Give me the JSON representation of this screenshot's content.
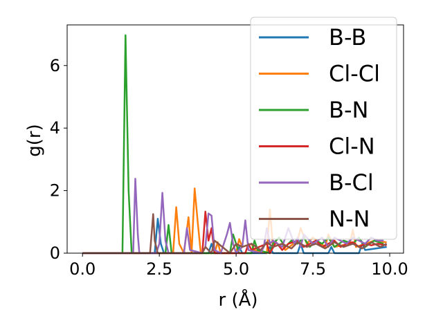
{
  "chart_data": {
    "type": "line",
    "title": "",
    "xlabel": "r (Å)",
    "ylabel": "g(r)",
    "xlim": [
      -0.5,
      10.45
    ],
    "ylim": [
      0,
      7.3
    ],
    "xticks": [
      0.0,
      2.5,
      5.0,
      7.5,
      10.0
    ],
    "xtick_labels": [
      "0.0",
      "2.5",
      "5.0",
      "7.5",
      "10.0"
    ],
    "yticks": [
      0,
      2,
      4,
      6
    ],
    "ytick_labels": [
      "0",
      "2",
      "4",
      "6"
    ],
    "grid": false,
    "legend_position": "top-right",
    "series": [
      {
        "name": "B-B",
        "color": "#1f77b4",
        "x": [
          0.0,
          2.35,
          2.45,
          2.55,
          2.65,
          2.8,
          4.1,
          4.2,
          4.3,
          5.0,
          5.1,
          5.2,
          6.0,
          6.1,
          6.2,
          7.0,
          7.1,
          7.2,
          8.0,
          8.1,
          8.2,
          9.0,
          9.1,
          9.2,
          9.9
        ],
        "y": [
          0.0,
          0.0,
          1.1,
          0.3,
          0.0,
          0.0,
          0.0,
          0.3,
          0.0,
          0.0,
          0.2,
          0.0,
          0.0,
          0.2,
          0.0,
          0.0,
          0.3,
          0.0,
          0.0,
          0.2,
          0.0,
          0.0,
          0.3,
          0.1,
          0.2
        ]
      },
      {
        "name": "Cl-Cl",
        "color": "#ff7f0e",
        "x": [
          0.0,
          2.95,
          3.05,
          3.15,
          3.3,
          3.45,
          3.55,
          3.65,
          3.75,
          3.85,
          4.3,
          4.4,
          4.5,
          5.0,
          5.1,
          5.2,
          5.5,
          5.6,
          6.0,
          6.1,
          6.2,
          6.5,
          6.6,
          7.0,
          7.1,
          7.3,
          7.5,
          7.9,
          8.0,
          8.2,
          8.7,
          8.8,
          8.9,
          9.5,
          9.9
        ],
        "y": [
          0.0,
          0.0,
          1.47,
          0.3,
          0.0,
          1.15,
          0.0,
          2.07,
          1.0,
          0.0,
          0.0,
          0.35,
          0.0,
          0.0,
          0.45,
          0.2,
          0.3,
          0.1,
          0.0,
          1.4,
          0.2,
          0.3,
          0.1,
          0.4,
          0.8,
          0.3,
          0.5,
          0.2,
          0.6,
          0.2,
          0.3,
          0.75,
          0.2,
          0.4,
          0.35
        ]
      },
      {
        "name": "B-N",
        "color": "#2ca02c",
        "x": [
          0.0,
          1.3,
          1.4,
          1.5,
          1.6,
          2.7,
          2.8,
          2.9,
          4.8,
          4.9,
          5.0,
          5.1,
          5.5,
          5.6,
          5.7,
          6.1,
          6.2,
          6.4,
          6.6,
          6.8,
          7.0,
          7.2,
          7.4,
          7.6,
          7.8,
          8.0,
          8.2,
          8.5,
          8.8,
          9.0,
          9.2,
          9.5,
          9.8
        ],
        "y": [
          0.0,
          0.0,
          6.97,
          2.0,
          0.0,
          0.0,
          0.9,
          0.0,
          0.0,
          0.6,
          0.3,
          0.0,
          0.0,
          0.4,
          0.1,
          0.0,
          0.3,
          0.5,
          0.2,
          0.4,
          0.3,
          0.5,
          0.2,
          0.4,
          0.3,
          0.5,
          0.2,
          0.4,
          0.3,
          0.5,
          0.2,
          0.4,
          0.3
        ]
      },
      {
        "name": "Cl-N",
        "color": "#d62728",
        "x": [
          0.0,
          3.9,
          4.0,
          4.1,
          4.2,
          4.3,
          5.3,
          5.4,
          5.5,
          6.0,
          6.1,
          6.3,
          6.5,
          6.7,
          7.0,
          7.2,
          7.4,
          7.6,
          7.8,
          8.0,
          8.2,
          8.4,
          8.6,
          8.8,
          9.0,
          9.2,
          9.4,
          9.6,
          9.9
        ],
        "y": [
          0.0,
          0.0,
          1.33,
          0.4,
          0.8,
          0.0,
          0.0,
          0.3,
          0.1,
          0.3,
          0.0,
          0.35,
          0.1,
          0.3,
          0.4,
          0.2,
          0.3,
          0.4,
          0.2,
          0.3,
          0.4,
          0.2,
          0.3,
          0.35,
          0.2,
          0.3,
          0.25,
          0.3,
          0.25
        ]
      },
      {
        "name": "B-Cl",
        "color": "#9467bd",
        "x": [
          0.0,
          1.65,
          1.72,
          1.8,
          1.85,
          2.4,
          2.5,
          2.6,
          2.7,
          2.8,
          3.3,
          3.4,
          3.5,
          3.9,
          4.0,
          4.1,
          4.2,
          4.3,
          4.5,
          4.7,
          4.8,
          4.9,
          5.0,
          5.2,
          5.3,
          5.4,
          5.8,
          5.9,
          6.0,
          6.1,
          6.2,
          6.5,
          6.7,
          6.9,
          7.0,
          7.1,
          7.2,
          7.5,
          7.8,
          8.0,
          8.2,
          8.4,
          8.6,
          8.8,
          9.0,
          9.2,
          9.4,
          9.6,
          9.8
        ],
        "y": [
          0.0,
          0.0,
          2.38,
          0.6,
          0.0,
          0.0,
          0.3,
          1.93,
          0.4,
          0.0,
          0.0,
          0.8,
          0.1,
          0.0,
          0.2,
          1.27,
          1.2,
          0.1,
          0.0,
          0.6,
          0.97,
          0.3,
          0.0,
          0.2,
          1.05,
          0.1,
          0.0,
          0.2,
          0.8,
          0.3,
          0.4,
          0.2,
          0.8,
          0.3,
          0.5,
          0.2,
          0.6,
          0.3,
          0.5,
          0.2,
          0.5,
          0.4,
          0.3,
          0.5,
          0.4,
          0.3,
          0.5,
          0.4,
          0.4
        ]
      },
      {
        "name": "N-N",
        "color": "#8c564b",
        "x": [
          0.0,
          2.2,
          2.3,
          2.35,
          2.45,
          2.6,
          3.9,
          4.0,
          4.2,
          4.3,
          4.8,
          5.0,
          5.2,
          5.5,
          5.8,
          6.0,
          6.2,
          6.5,
          6.8,
          7.0,
          7.3,
          7.6,
          7.9,
          8.2,
          8.5,
          8.8,
          9.1,
          9.4,
          9.7,
          9.9
        ],
        "y": [
          0.0,
          0.0,
          1.25,
          0.4,
          0.0,
          0.0,
          0.0,
          0.2,
          0.0,
          0.4,
          0.0,
          0.3,
          0.2,
          0.3,
          0.1,
          0.35,
          0.2,
          0.3,
          0.15,
          0.35,
          0.2,
          0.3,
          0.15,
          0.35,
          0.2,
          0.3,
          0.15,
          0.35,
          0.2,
          0.3
        ]
      }
    ]
  }
}
